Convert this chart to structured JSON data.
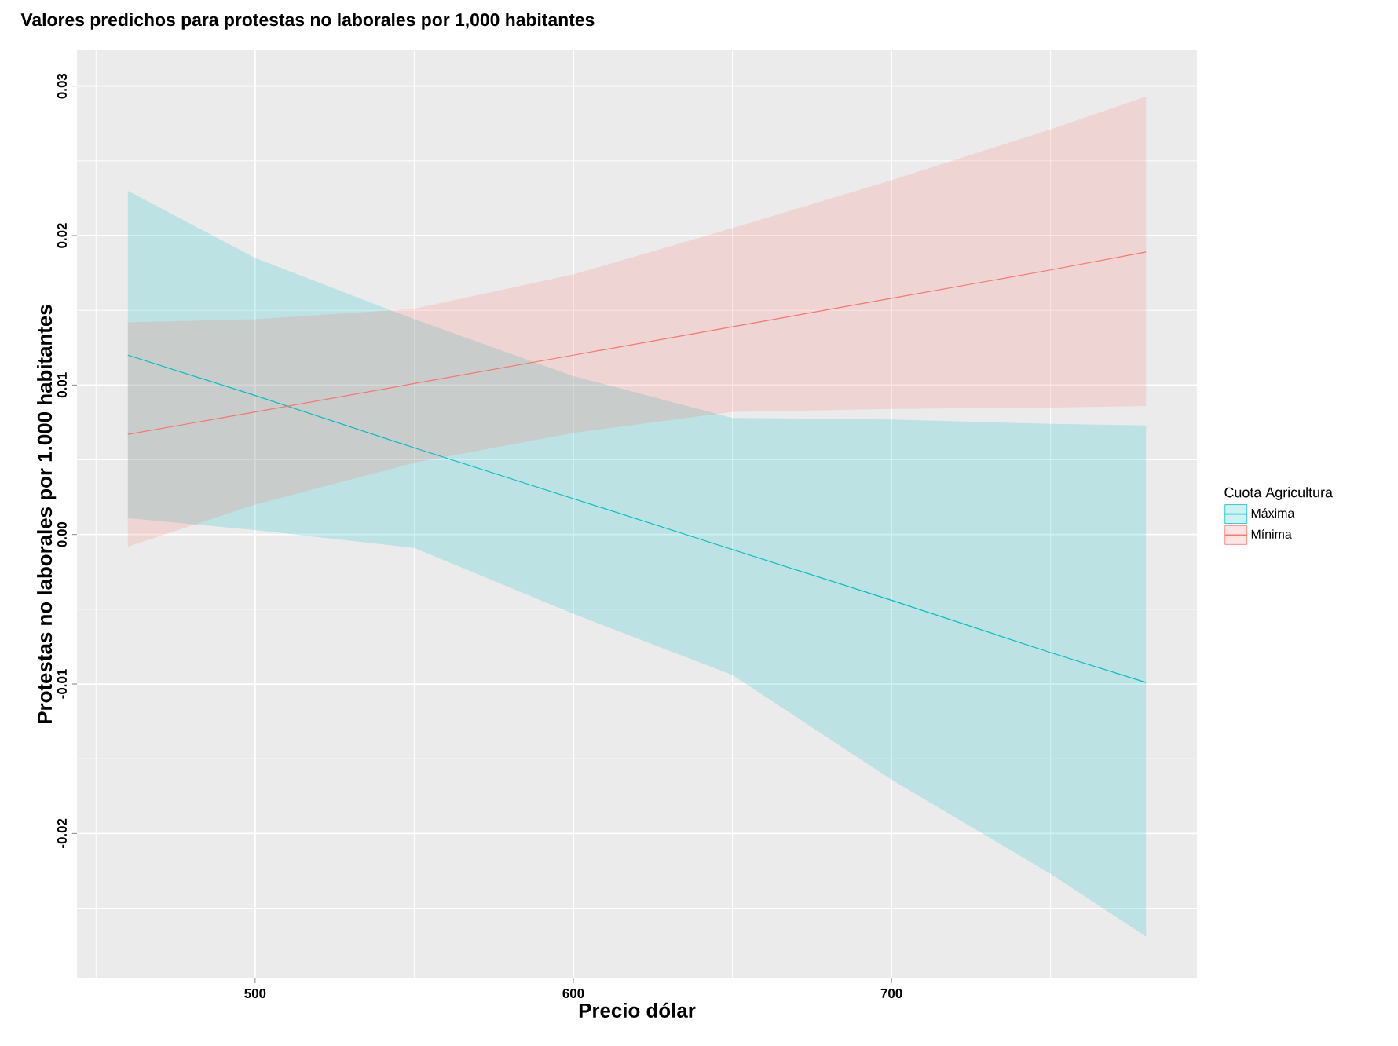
{
  "chart_data": {
    "type": "line",
    "title": "Valores predichos para protestas no laborales por 1,000 habitantes",
    "xlabel": "Precio dólar",
    "ylabel": "Protestas no laborales por 1.000 habitantes",
    "legend_title": "Cuota Agricultura",
    "x": [
      460,
      500,
      550,
      600,
      650,
      700,
      750,
      780
    ],
    "series": [
      {
        "name": "Máxima",
        "color": "#00bfc4",
        "values": [
          0.012,
          0.0093,
          0.0058,
          0.0024,
          -0.001,
          -0.0044,
          -0.0079,
          -0.0099
        ],
        "lower": [
          0.0011,
          0.0003,
          -0.0009,
          -0.0053,
          -0.0094,
          -0.0164,
          -0.0227,
          -0.0269
        ],
        "upper": [
          0.023,
          0.0185,
          0.0144,
          0.0106,
          0.0078,
          0.0077,
          0.0074,
          0.0073
        ]
      },
      {
        "name": "Mínima",
        "color": "#f8766d",
        "values": [
          0.0067,
          0.0082,
          0.0101,
          0.012,
          0.0139,
          0.0158,
          0.0177,
          0.0189
        ],
        "lower": [
          -0.0008,
          0.002,
          0.0048,
          0.0068,
          0.0082,
          0.0084,
          0.0085,
          0.0086
        ],
        "upper": [
          0.0142,
          0.0144,
          0.0151,
          0.0174,
          0.0205,
          0.0237,
          0.0271,
          0.0293
        ]
      }
    ],
    "xlim": [
      444,
      796
    ],
    "ylim": [
      -0.0297,
      0.0324
    ],
    "xticks": [
      500,
      600,
      700
    ],
    "yticks": [
      {
        "value": -0.02,
        "label": "-0.02"
      },
      {
        "value": -0.01,
        "label": "-0.01"
      },
      {
        "value": 0,
        "label": "0.00"
      },
      {
        "value": 0.01,
        "label": "0.01"
      },
      {
        "value": 0.02,
        "label": "0.02"
      },
      {
        "value": 0.03,
        "label": "0.03"
      }
    ],
    "grid": true,
    "legend": "right"
  }
}
